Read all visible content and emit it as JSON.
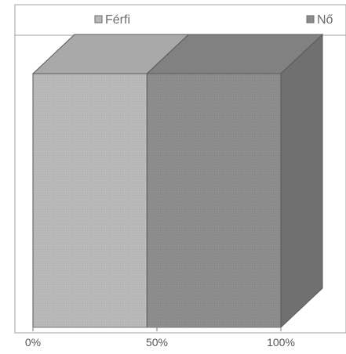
{
  "chart_data": {
    "type": "bar",
    "orientation": "horizontal",
    "stacked": "percent",
    "three_d": true,
    "categories": [
      ""
    ],
    "series": [
      {
        "name": "Férfi",
        "values": [
          46
        ],
        "color": "#b8b8b8"
      },
      {
        "name": "Nő",
        "values": [
          54
        ],
        "color": "#8c8c8c"
      }
    ],
    "xlim": [
      0,
      100
    ],
    "x_ticks": [
      "0%",
      "50%",
      "100%"
    ],
    "legend": "top",
    "grid": false,
    "title": "",
    "xlabel": "",
    "ylabel": ""
  }
}
